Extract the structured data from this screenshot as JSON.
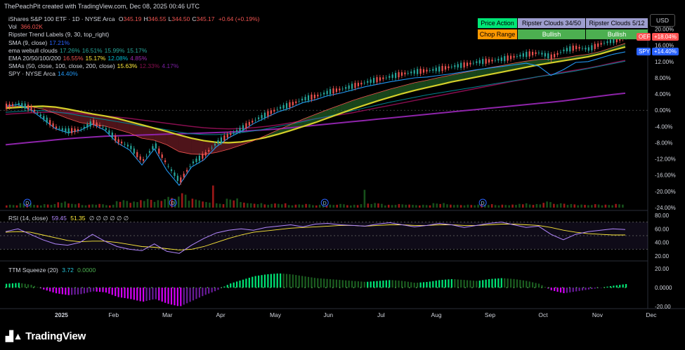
{
  "header": {
    "credit": "ThePeachPit created with TradingView.com, Dec 08, 2025 00:46 UTC"
  },
  "legend": {
    "title": "iShares S&P 100 ETF · 1D · NYSE Arca",
    "ohlc": [
      {
        "k": "O",
        "v": "345.19"
      },
      {
        "k": "H",
        "v": "346.55"
      },
      {
        "k": "L",
        "v": "344.50"
      },
      {
        "k": "C",
        "v": "345.17"
      }
    ],
    "change": "+0.64 (+0.19%)",
    "vol_label": "Vol",
    "vol_value": "366.02K",
    "rows": [
      {
        "name": "Ripster Trend Labels (9, 30, top_right)",
        "values": []
      },
      {
        "name": "SMA (9, close)",
        "values": [
          {
            "t": "17.21%",
            "c": "#2962ff"
          }
        ]
      },
      {
        "name": "ema webull clouds",
        "values": [
          {
            "t": "17.26%",
            "c": "#26a69a"
          },
          {
            "t": "16.51%",
            "c": "#26a69a"
          },
          {
            "t": "15.99%",
            "c": "#26a69a"
          },
          {
            "t": "15.17%",
            "c": "#26a69a"
          }
        ]
      },
      {
        "name": "EMA 20/50/100/200",
        "values": [
          {
            "t": "16.55%",
            "c": "#ef5350"
          },
          {
            "t": "15.17%",
            "c": "#ffeb3b"
          },
          {
            "t": "12.08%",
            "c": "#00bcd4"
          },
          {
            "t": "4.85%",
            "c": "#9c27b0"
          }
        ]
      },
      {
        "name": "SMAs (50, close, 100, close, 200, close)",
        "values": [
          {
            "t": "15.63%",
            "c": "#ffeb3b"
          },
          {
            "t": "12.33%",
            "c": "#880e4f"
          },
          {
            "t": "4.17%",
            "c": "#7b1fa2"
          }
        ]
      },
      {
        "name": "SPY · NYSE Arca",
        "values": [
          {
            "t": "14.40%",
            "c": "#2196f3"
          }
        ]
      }
    ]
  },
  "table": {
    "row1": [
      {
        "text": "Price Action",
        "bg": "#00e676",
        "fg": "#000"
      },
      {
        "text": "Ripster Clouds 34/50",
        "bg": "#9e9ecf",
        "fg": "#000"
      },
      {
        "text": "Ripster Clouds 5/12",
        "bg": "#9e9ecf",
        "fg": "#000"
      }
    ],
    "row2": [
      {
        "text": "Chop Range",
        "bg": "#ff9800",
        "fg": "#000"
      },
      {
        "text": "Bullish",
        "bg": "#4caf50",
        "fg": "#fff"
      },
      {
        "text": "Bullish",
        "bg": "#4caf50",
        "fg": "#fff"
      }
    ]
  },
  "currency": "USD",
  "rsi": {
    "label": "RSI (14, close)",
    "v1": "59.45",
    "v2": "51.35",
    "rest": "∅ ∅ ∅ ∅ ∅ ∅"
  },
  "ttm": {
    "label": "TTM Squeeze (20)",
    "v1": "3.72",
    "v2": "0.0000"
  },
  "price_tags": [
    {
      "label": "OEF",
      "value": "+18.04%",
      "bg": "#ff5252"
    },
    {
      "label": "SPY",
      "value": "+14.40%",
      "bg": "#2962ff"
    }
  ],
  "dividend_marker": "D",
  "logo": "TradingView",
  "chart_data": {
    "type": "line",
    "x_labels": [
      "2025",
      "Feb",
      "Mar",
      "Apr",
      "May",
      "Jun",
      "Jul",
      "Aug",
      "Sep",
      "Oct",
      "Nov",
      "Dec"
    ],
    "y_ticks": [
      "20.00%",
      "16.00%",
      "12.00%",
      "8.00%",
      "4.00%",
      "0.00%",
      "-4.00%",
      "-8.00%",
      "-12.00%",
      "-16.00%",
      "-20.00%",
      "-24.00%"
    ],
    "ylim": [
      -24,
      22
    ],
    "rsi_ticks": [
      "80.00",
      "60.00",
      "40.00",
      "20.00"
    ],
    "ttm_ticks": [
      "20.00",
      "0.0000",
      "-20.00"
    ],
    "months_x": [
      0,
      1,
      2,
      3,
      4,
      5,
      6,
      7,
      8,
      9,
      10,
      11
    ],
    "oef_pct": [
      1,
      1.6,
      0.5,
      -1.8,
      -4.2,
      -5.1,
      -4.8,
      -3.0,
      -4.5,
      -7.5,
      -9.0,
      -12.5,
      -8.5,
      -13.5,
      -17.5,
      -13.0,
      -11.0,
      -8.0,
      -6.0,
      -4.5,
      -2.5,
      -1.0,
      0.5,
      1.5,
      2.8,
      3.5,
      4.5,
      5.2,
      6.0,
      6.9,
      7.6,
      8.3,
      9.0,
      9.5,
      9.8,
      10.2,
      10.8,
      11.2,
      11.9,
      12.2,
      12.6,
      13.2,
      13.8,
      14.2,
      13.1,
      14.8,
      15.5,
      15.1,
      16.4,
      17.2,
      18.0
    ],
    "spy_pct": [
      1,
      1.4,
      0.2,
      -2.1,
      -4.5,
      -5.5,
      -5.0,
      -3.4,
      -4.9,
      -8.0,
      -9.8,
      -13.5,
      -9.5,
      -14.8,
      -18.5,
      -14.0,
      -12.2,
      -9.0,
      -6.8,
      -5.2,
      -3.3,
      -1.8,
      -0.4,
      0.6,
      1.9,
      2.6,
      3.6,
      4.2,
      5.0,
      5.8,
      6.4,
      7.0,
      7.5,
      8.0,
      8.2,
      8.6,
      9.0,
      9.5,
      10.0,
      10.4,
      10.8,
      11.2,
      11.6,
      10.9,
      8.6,
      10.0,
      11.8,
      12.0,
      12.9,
      13.8,
      14.4
    ],
    "ema20_pct": [
      0.8,
      1.0,
      0.9,
      0.3,
      -0.8,
      -2.0,
      -3.0,
      -3.5,
      -3.9,
      -4.7,
      -5.6,
      -6.9,
      -7.4,
      -8.5,
      -10.2,
      -10.8,
      -10.9,
      -10.4,
      -9.6,
      -8.6,
      -7.5,
      -6.2,
      -4.8,
      -3.5,
      -2.2,
      -1.0,
      0.2,
      1.3,
      2.4,
      3.4,
      4.3,
      5.2,
      6.0,
      6.8,
      7.4,
      8.1,
      8.7,
      9.3,
      9.9,
      10.5,
      11.0,
      11.6,
      12.1,
      12.5,
      12.6,
      12.9,
      13.4,
      13.8,
      14.5,
      15.5,
      16.5
    ],
    "sma50_pct": [
      0.5,
      0.7,
      0.9,
      1.0,
      0.8,
      0.3,
      -0.3,
      -0.9,
      -1.4,
      -2.0,
      -2.8,
      -3.6,
      -4.4,
      -5.2,
      -6.1,
      -6.9,
      -7.5,
      -7.9,
      -8.0,
      -7.8,
      -7.3,
      -6.7,
      -5.9,
      -5.0,
      -4.0,
      -3.0,
      -1.9,
      -0.8,
      0.3,
      1.3,
      2.3,
      3.2,
      4.1,
      4.9,
      5.6,
      6.3,
      7.0,
      7.6,
      8.2,
      8.8,
      9.4,
      10.0,
      10.6,
      11.2,
      11.7,
      12.2,
      12.7,
      13.2,
      13.9,
      14.8,
      15.6
    ],
    "sma100_pct": [
      -1.0,
      -0.8,
      -0.6,
      -0.5,
      -0.5,
      -0.6,
      -0.8,
      -1.1,
      -1.4,
      -1.7,
      -2.0,
      -2.4,
      -2.8,
      -3.2,
      -3.6,
      -4.0,
      -4.3,
      -4.5,
      -4.6,
      -4.5,
      -4.3,
      -4.0,
      -3.6,
      -3.1,
      -2.6,
      -2.1,
      -1.6,
      -1.1,
      -0.6,
      0.0,
      0.6,
      1.2,
      1.8,
      2.4,
      3.0,
      3.6,
      4.2,
      4.8,
      5.4,
      6.0,
      6.6,
      7.2,
      7.7,
      8.3,
      8.8,
      9.4,
      9.9,
      10.4,
      11.0,
      11.7,
      12.3
    ],
    "sma200_pct": [
      -8.5,
      -8.2,
      -7.9,
      -7.6,
      -7.3,
      -7.0,
      -6.8,
      -6.6,
      -6.4,
      -6.3,
      -6.2,
      -6.1,
      -6.0,
      -5.9,
      -5.8,
      -5.7,
      -5.6,
      -5.5,
      -5.4,
      -5.2,
      -5.0,
      -4.8,
      -4.6,
      -4.3,
      -4.0,
      -3.7,
      -3.4,
      -3.1,
      -2.8,
      -2.5,
      -2.2,
      -1.9,
      -1.6,
      -1.3,
      -1.0,
      -0.7,
      -0.4,
      -0.1,
      0.2,
      0.5,
      0.8,
      1.1,
      1.4,
      1.7,
      2.0,
      2.3,
      2.7,
      3.1,
      3.5,
      3.9,
      4.2
    ],
    "ema100_pct": [
      -0.5,
      -0.3,
      -0.1,
      -0.1,
      -0.4,
      -0.8,
      -1.3,
      -1.8,
      -2.3,
      -2.8,
      -3.3,
      -3.9,
      -4.3,
      -4.8,
      -5.4,
      -5.8,
      -6.0,
      -6.0,
      -5.8,
      -5.5,
      -5.1,
      -4.6,
      -4.0,
      -3.4,
      -2.8,
      -2.1,
      -1.5,
      -0.8,
      -0.1,
      0.6,
      1.3,
      2.0,
      2.6,
      3.2,
      3.8,
      4.3,
      4.8,
      5.3,
      5.8,
      6.3,
      6.8,
      7.3,
      7.8,
      8.3,
      8.7,
      9.2,
      9.7,
      10.3,
      10.9,
      11.5,
      12.1
    ],
    "volume_rel": [
      0.1,
      0.15,
      0.1,
      0.12,
      0.2,
      0.15,
      0.1,
      0.12,
      0.1,
      0.25,
      0.2,
      0.3,
      0.25,
      0.35,
      0.5,
      0.3,
      0.2,
      1.0,
      0.3,
      0.2,
      0.15,
      0.12,
      0.15,
      0.1,
      0.12,
      0.1,
      0.1,
      0.12,
      0.1,
      0.6,
      0.15,
      0.1,
      0.12,
      0.1,
      0.1,
      0.15,
      0.12,
      0.1,
      0.1,
      0.12,
      0.1,
      0.1,
      1.4,
      0.12,
      0.2,
      0.15,
      0.12,
      0.1,
      0.12,
      0.1,
      0.12
    ],
    "rsi_values": [
      56,
      60,
      52,
      44,
      38,
      36,
      40,
      52,
      42,
      34,
      30,
      28,
      38,
      27,
      24,
      36,
      46,
      54,
      58,
      60,
      58,
      62,
      64,
      66,
      63,
      67,
      68,
      66,
      65,
      64,
      67,
      69,
      66,
      63,
      65,
      68,
      66,
      62,
      65,
      68,
      70,
      66,
      62,
      64,
      52,
      44,
      52,
      56,
      58,
      60,
      59
    ],
    "rsi_signal": [
      55,
      56,
      55,
      51,
      47,
      43,
      41,
      42,
      42,
      40,
      37,
      34,
      33,
      31,
      29,
      30,
      34,
      40,
      46,
      51,
      55,
      57,
      59,
      61,
      62,
      63,
      64,
      65,
      65,
      64,
      65,
      66,
      66,
      65,
      65,
      66,
      66,
      65,
      65,
      66,
      67,
      67,
      66,
      65,
      62,
      58,
      55,
      53,
      52,
      51,
      51
    ],
    "ttm_values": [
      4,
      5,
      3,
      -2,
      -6,
      -8,
      -7,
      -4,
      -5,
      -10,
      -12,
      -15,
      -12,
      -17,
      -20,
      -14,
      -8,
      -3,
      4,
      8,
      12,
      14,
      15,
      14,
      12,
      10,
      9,
      8,
      7,
      6,
      7,
      8,
      7,
      5,
      6,
      8,
      9,
      8,
      7,
      9,
      10,
      9,
      7,
      4,
      -3,
      -6,
      -4,
      -2,
      0,
      2,
      3.72
    ]
  }
}
